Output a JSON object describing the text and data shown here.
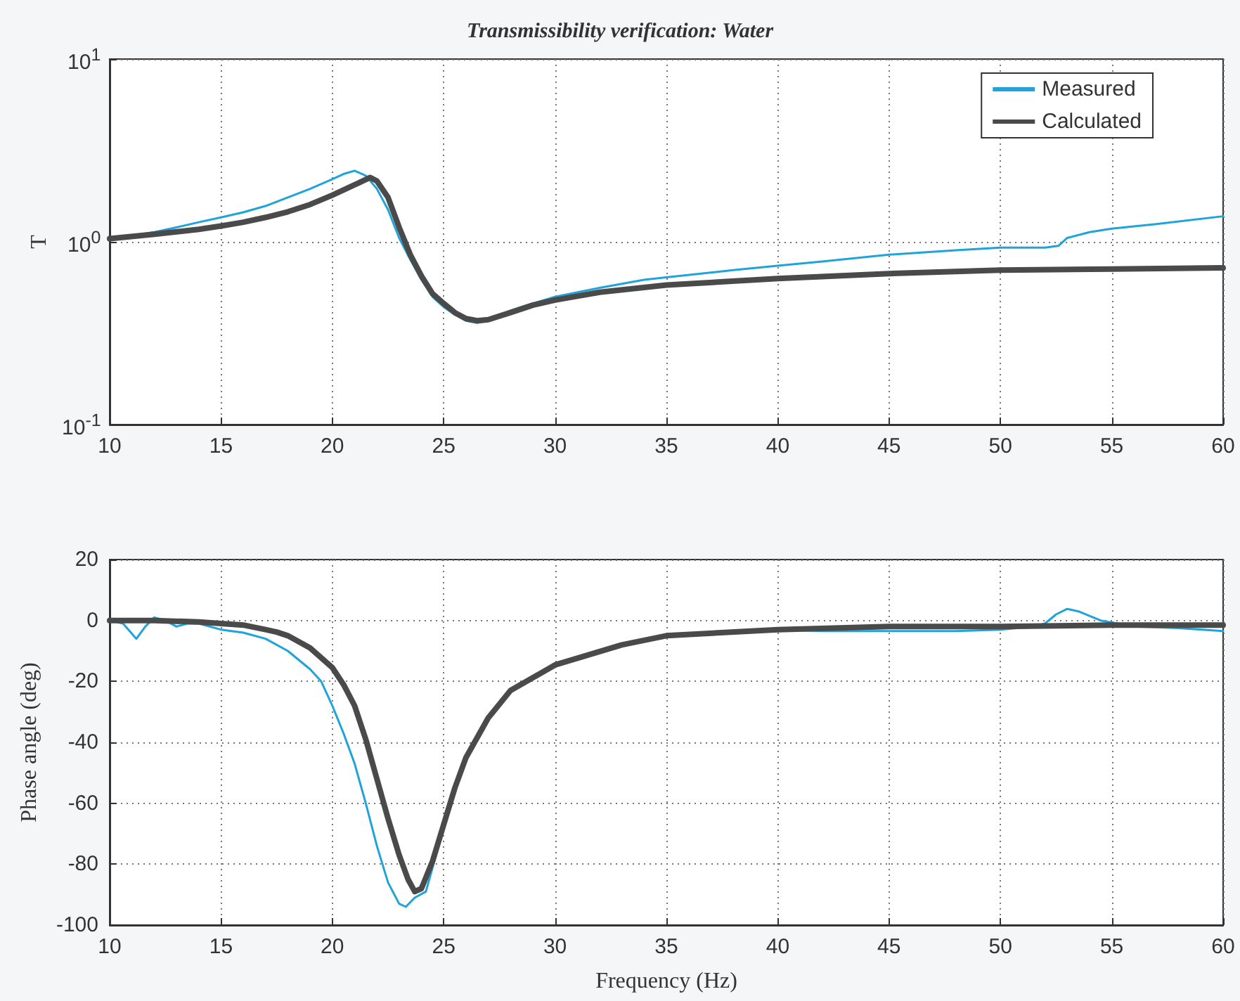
{
  "chart_data": [
    {
      "type": "line",
      "title": "Transmissibility verification: Water",
      "ylabel": "T",
      "log": "y",
      "grid": true,
      "legend": "top right",
      "marker": "none",
      "line_style": "solid",
      "xlim": [
        10,
        60
      ],
      "xticks": [
        10,
        15,
        20,
        25,
        30,
        35,
        40,
        45,
        50,
        55,
        60
      ],
      "ylim": [
        0.1,
        10
      ],
      "yticks": [
        {
          "value": 0.1,
          "label": "10$^{-1}$"
        },
        {
          "value": 1,
          "label": "10$^{0}$"
        },
        {
          "value": 10,
          "label": "10$^{1}$"
        }
      ],
      "series": [
        {
          "name": "Measured",
          "color": "#1fa3d9",
          "x": [
            10,
            11,
            12,
            13,
            14,
            15,
            16,
            17,
            18,
            19,
            20,
            20.5,
            21,
            21.5,
            22,
            22.5,
            23,
            23.5,
            24,
            24.5,
            25,
            25.5,
            26,
            26.5,
            27,
            28,
            29,
            30,
            32,
            34,
            35,
            38,
            40,
            42,
            45,
            48,
            50,
            52,
            52.6,
            53,
            54,
            55,
            57,
            60
          ],
          "values": [
            1.05,
            1.08,
            1.13,
            1.2,
            1.28,
            1.36,
            1.45,
            1.57,
            1.75,
            1.95,
            2.2,
            2.35,
            2.45,
            2.3,
            1.95,
            1.5,
            1.05,
            0.8,
            0.62,
            0.5,
            0.44,
            0.4,
            0.37,
            0.36,
            0.37,
            0.42,
            0.46,
            0.5,
            0.56,
            0.62,
            0.64,
            0.7,
            0.74,
            0.78,
            0.85,
            0.9,
            0.93,
            0.93,
            0.95,
            1.05,
            1.13,
            1.18,
            1.25,
            1.38
          ]
        },
        {
          "name": "Calculated",
          "color": "#4a4a4a",
          "x": [
            10,
            12,
            14,
            15,
            16,
            17,
            18,
            19,
            20,
            21,
            21.7,
            22,
            22.5,
            23,
            23.5,
            24,
            24.5,
            25,
            25.5,
            26,
            26.5,
            27,
            28,
            29,
            30,
            32,
            35,
            40,
            45,
            50,
            55,
            60
          ],
          "values": [
            1.04,
            1.1,
            1.17,
            1.22,
            1.28,
            1.36,
            1.46,
            1.6,
            1.8,
            2.05,
            2.25,
            2.15,
            1.75,
            1.2,
            0.85,
            0.65,
            0.52,
            0.46,
            0.41,
            0.38,
            0.37,
            0.375,
            0.41,
            0.45,
            0.48,
            0.53,
            0.58,
            0.63,
            0.67,
            0.7,
            0.71,
            0.72
          ]
        }
      ]
    },
    {
      "type": "line",
      "xlabel": "Frequency (Hz)",
      "ylabel": "Phase angle (deg)",
      "grid": true,
      "marker": "none",
      "line_style": "solid",
      "xlim": [
        10,
        60
      ],
      "xticks": [
        10,
        15,
        20,
        25,
        30,
        35,
        40,
        45,
        50,
        55,
        60
      ],
      "ylim": [
        -100,
        20
      ],
      "yticks": [
        -100,
        -80,
        -60,
        -40,
        -20,
        0,
        20
      ],
      "series": [
        {
          "color": "#1fa3d9",
          "x": [
            10,
            10.6,
            11.2,
            11.6,
            12,
            12.5,
            13,
            13.5,
            14,
            15,
            16,
            17,
            18,
            19,
            19.5,
            20,
            20.5,
            21,
            21.5,
            22,
            22.5,
            23,
            23.3,
            23.7,
            24.2,
            25,
            26,
            27,
            28,
            30,
            33,
            35,
            40,
            42,
            45,
            48,
            50,
            51.5,
            52,
            52.5,
            53,
            53.5,
            54.5,
            56,
            58,
            60
          ],
          "values": [
            0,
            -1,
            -6,
            -2,
            1,
            0,
            -2,
            -1,
            -1,
            -3,
            -4,
            -6,
            -10,
            -16,
            -20,
            -28,
            -37,
            -47,
            -60,
            -74,
            -86,
            -93,
            -94,
            -91,
            -89,
            -68,
            -45,
            -32,
            -23,
            -14.6,
            -8,
            -5.5,
            -3,
            -3.5,
            -3.5,
            -3.5,
            -3,
            -2,
            -1,
            2,
            3.8,
            3,
            0,
            -2,
            -2.5,
            -3.5
          ]
        },
        {
          "color": "#4a4a4a",
          "x": [
            10,
            12,
            14,
            15,
            16,
            17,
            17.5,
            18,
            19,
            20,
            20.5,
            21,
            21.5,
            22,
            22.5,
            23,
            23.4,
            23.7,
            24,
            24.5,
            25,
            25.5,
            26,
            27,
            28,
            30,
            33,
            35,
            40,
            45,
            50,
            55,
            60
          ],
          "values": [
            0,
            0,
            -0.5,
            -1,
            -1.5,
            -3,
            -3.8,
            -5,
            -9,
            -15.5,
            -21,
            -28,
            -39,
            -52,
            -65,
            -77,
            -85,
            -89,
            -88,
            -79,
            -67,
            -55,
            -45,
            -32,
            -23,
            -14.6,
            -8,
            -5,
            -3,
            -2,
            -2,
            -1.5,
            -1.5
          ]
        }
      ]
    }
  ]
}
